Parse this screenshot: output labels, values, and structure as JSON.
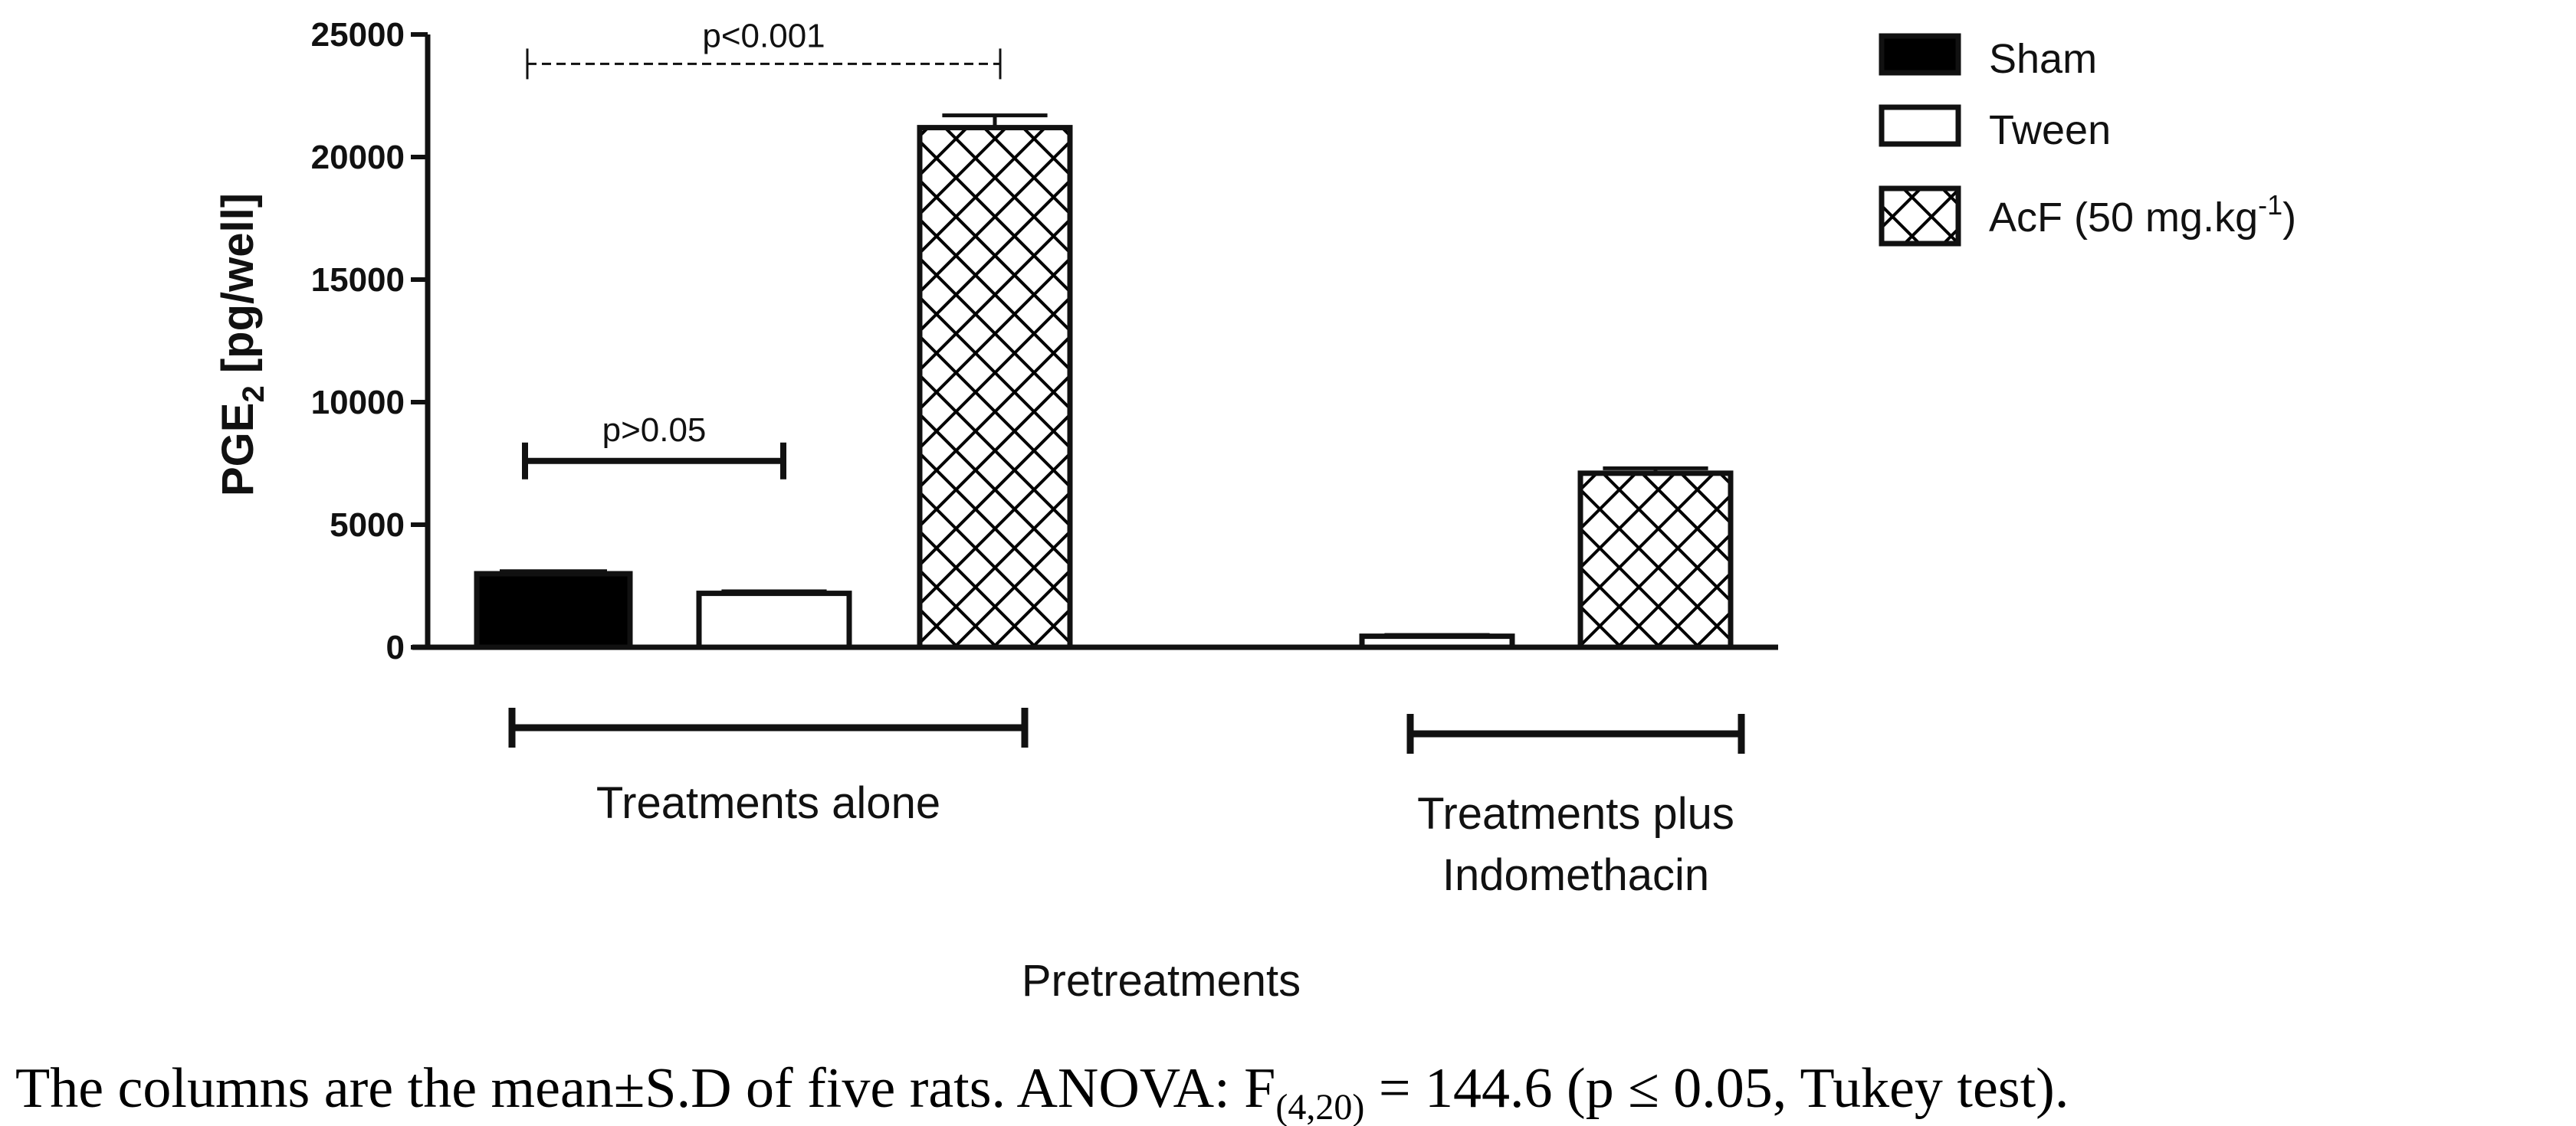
{
  "chart_data": {
    "type": "bar",
    "xlabel": "Pretreatments",
    "ylabel_main": "PGE",
    "ylabel_sub": "2",
    "ylabel_rest": " [pg/well]",
    "ylim": [
      0,
      25000
    ],
    "yticks": [
      "0",
      "5000",
      "10000",
      "15000",
      "20000",
      "25000"
    ],
    "groups": [
      {
        "label_lines": [
          "Treatments alone"
        ]
      },
      {
        "label_lines": [
          "Treatments plus",
          "Indomethacin"
        ]
      }
    ],
    "series": [
      {
        "name": "Sham",
        "fill": "#000000"
      },
      {
        "name": "Tween",
        "fill": "#ffffff"
      },
      {
        "name": "AcF (50 mg.kg",
        "name_sup": "-1",
        "name_suffix": ")",
        "fill": "crosshatch"
      }
    ],
    "bars": [
      {
        "group": 0,
        "series": "Sham",
        "value": 3000,
        "error": 100
      },
      {
        "group": 0,
        "series": "Tween",
        "value": 2200,
        "error": 80
      },
      {
        "group": 0,
        "series": "AcF (50 mg.kg-1)",
        "value": 21200,
        "error": 500
      },
      {
        "group": 1,
        "series": "Tween",
        "value": 450,
        "error": 50
      },
      {
        "group": 1,
        "series": "AcF (50 mg.kg-1)",
        "value": 7100,
        "error": 200
      }
    ],
    "comparisons": [
      {
        "label": "p<0.001",
        "y": 23800,
        "style": "dashed"
      },
      {
        "label": "p>0.05",
        "y": 7600,
        "style": "solid"
      }
    ],
    "legend_position": "top-right",
    "grid": false
  },
  "caption": {
    "prefix": "The columns are the mean±S.D of five rats. ANOVA: F",
    "sub": "(4,20)",
    "suffix": " = 144.6 (p ≤ 0.05, Tukey test)."
  }
}
